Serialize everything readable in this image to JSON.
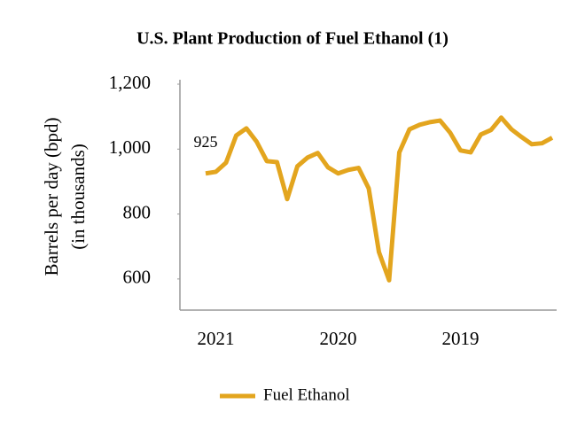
{
  "chart_data": {
    "type": "line",
    "title": "U.S. Plant Production of Fuel Ethanol (1)",
    "ylabel": [
      "Barrels per day (bpd)",
      "(in thousands)"
    ],
    "categories": [
      null,
      "2021",
      null,
      null,
      null,
      null,
      null,
      null,
      null,
      null,
      null,
      null,
      null,
      "2020",
      null,
      null,
      null,
      null,
      null,
      null,
      null,
      null,
      null,
      null,
      null,
      "2019",
      null,
      null,
      null,
      null,
      null,
      null,
      null,
      null,
      null
    ],
    "series": [
      {
        "name": "Fuel Ethanol",
        "color": "#e3a51e",
        "values": [
          925,
          930,
          958,
          1042,
          1064,
          1023,
          963,
          960,
          846,
          947,
          974,
          988,
          944,
          925,
          936,
          942,
          879,
          683,
          596,
          990,
          1061,
          1075,
          1083,
          1088,
          1050,
          996,
          990,
          1045,
          1059,
          1097,
          1061,
          1037,
          1015,
          1018,
          1035
        ],
        "value_labels": [
          "925",
          null,
          null,
          null,
          null,
          null,
          null,
          null,
          null,
          null,
          null,
          null,
          null,
          null,
          null,
          null,
          null,
          null,
          null,
          null,
          null,
          null,
          null,
          null,
          null,
          null,
          null,
          null,
          null,
          null,
          null,
          null,
          null,
          null,
          null
        ]
      }
    ],
    "ylim": [
      500,
      1200
    ],
    "yticks": [
      600,
      800,
      {
        "value": 1000,
        "label": "1,000"
      },
      {
        "value": 1200,
        "label": "1,200"
      }
    ],
    "grid": false,
    "legend": "bottom"
  }
}
